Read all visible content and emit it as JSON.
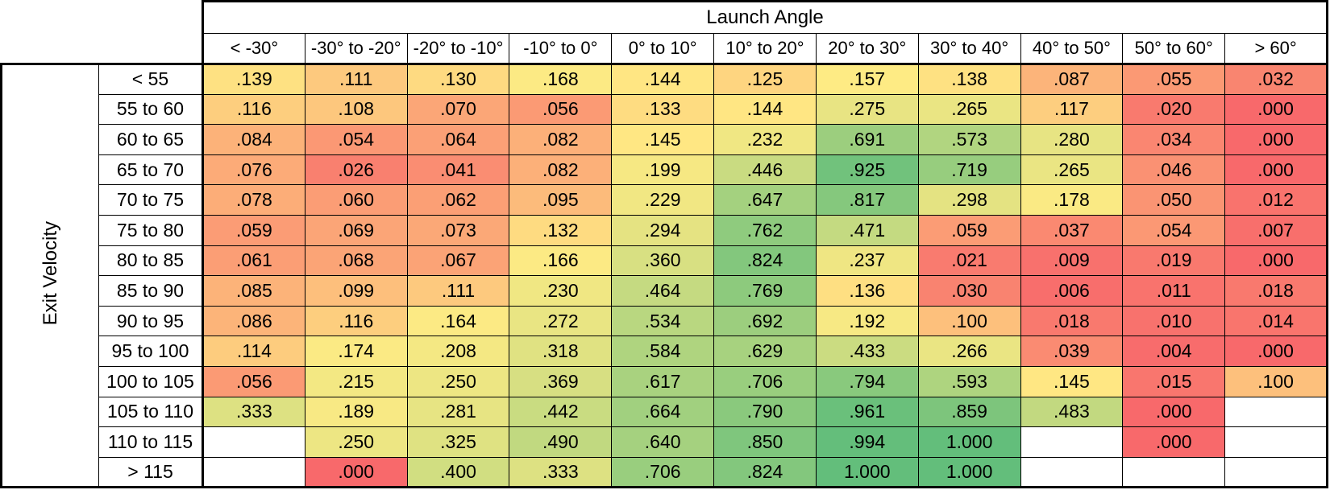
{
  "chart_data": {
    "type": "heatmap",
    "x_axis_label": "Launch Angle",
    "y_axis_label": "Exit Velocity",
    "x_categories": [
      "< -30°",
      "-30° to -20°",
      "-20° to -10°",
      "-10° to 0°",
      "0° to 10°",
      "10° to 20°",
      "20° to 30°",
      "30° to 40°",
      "40° to 50°",
      "50° to 60°",
      "> 60°"
    ],
    "y_categories": [
      "< 55",
      "55 to 60",
      "60 to 65",
      "65 to 70",
      "70 to 75",
      "75 to 80",
      "80 to 85",
      "85 to 90",
      "90 to 95",
      "95 to 100",
      "100 to 105",
      "105 to 110",
      "110 to 115",
      "> 115"
    ],
    "values": [
      [
        0.139,
        0.111,
        0.13,
        0.168,
        0.144,
        0.125,
        0.157,
        0.138,
        0.087,
        0.055,
        0.032
      ],
      [
        0.116,
        0.108,
        0.07,
        0.056,
        0.133,
        0.144,
        0.275,
        0.265,
        0.117,
        0.02,
        0.0
      ],
      [
        0.084,
        0.054,
        0.064,
        0.082,
        0.145,
        0.232,
        0.691,
        0.573,
        0.28,
        0.034,
        0.0
      ],
      [
        0.076,
        0.026,
        0.041,
        0.082,
        0.199,
        0.446,
        0.925,
        0.719,
        0.265,
        0.046,
        0.0
      ],
      [
        0.078,
        0.06,
        0.062,
        0.095,
        0.229,
        0.647,
        0.817,
        0.298,
        0.178,
        0.05,
        0.012
      ],
      [
        0.059,
        0.069,
        0.073,
        0.132,
        0.294,
        0.762,
        0.471,
        0.059,
        0.037,
        0.054,
        0.007
      ],
      [
        0.061,
        0.068,
        0.067,
        0.166,
        0.36,
        0.824,
        0.237,
        0.021,
        0.009,
        0.019,
        0.0
      ],
      [
        0.085,
        0.099,
        0.111,
        0.23,
        0.464,
        0.769,
        0.136,
        0.03,
        0.006,
        0.011,
        0.018
      ],
      [
        0.086,
        0.116,
        0.164,
        0.272,
        0.534,
        0.692,
        0.192,
        0.1,
        0.018,
        0.01,
        0.014
      ],
      [
        0.114,
        0.174,
        0.208,
        0.318,
        0.584,
        0.629,
        0.433,
        0.266,
        0.039,
        0.004,
        0.0
      ],
      [
        0.056,
        0.215,
        0.25,
        0.369,
        0.617,
        0.706,
        0.794,
        0.593,
        0.145,
        0.015,
        0.1
      ],
      [
        0.333,
        0.189,
        0.281,
        0.442,
        0.664,
        0.79,
        0.961,
        0.859,
        0.483,
        0.0,
        null
      ],
      [
        null,
        0.25,
        0.325,
        0.49,
        0.64,
        0.85,
        0.994,
        1.0,
        null,
        0.0,
        null
      ],
      [
        null,
        0.0,
        0.4,
        0.333,
        0.706,
        0.824,
        1.0,
        1.0,
        null,
        null,
        null
      ]
    ],
    "value_format": "three decimals, no leading zero (e.g. .139, 1.000)",
    "layout": {
      "grid": true,
      "legend": "none",
      "value_range": [
        0,
        1
      ]
    },
    "color_scale": {
      "type": "3-color",
      "min_value": 0,
      "min_color": "#F8696B",
      "mid_value": 0.15,
      "mid_color": "#FFEB84",
      "max_value": 1,
      "max_color": "#63BE7B",
      "empty_color": "#FFFFFF",
      "text_color": "#000000",
      "border_color": "#000000"
    }
  }
}
